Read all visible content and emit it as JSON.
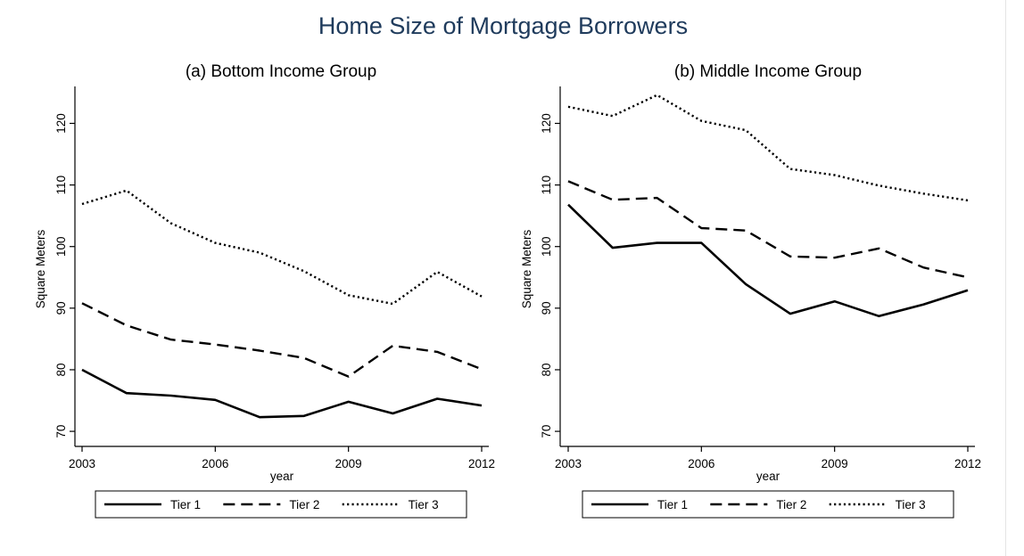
{
  "title": "Home Size of Mortgage Borrowers",
  "chart_data": [
    {
      "type": "line",
      "title": "(a) Bottom Income Group",
      "xlabel": "year",
      "ylabel": "Square Meters",
      "x": [
        2003,
        2004,
        2005,
        2006,
        2007,
        2008,
        2009,
        2010,
        2011,
        2012
      ],
      "xticks": [
        "2003",
        "2006",
        "2009",
        "2012"
      ],
      "yticks": [
        "70",
        "80",
        "90",
        "100",
        "110",
        "120"
      ],
      "xlim": [
        2003,
        2012
      ],
      "ylim": [
        69,
        126
      ],
      "grid": false,
      "legend": "bottom",
      "series": [
        {
          "name": "Tier 1",
          "style": "solid",
          "values": [
            80,
            76.2,
            75.8,
            75.1,
            72.3,
            72.5,
            74.8,
            72.9,
            75.3,
            74.2
          ]
        },
        {
          "name": "Tier 2",
          "style": "dashed",
          "values": [
            90.8,
            87.2,
            84.9,
            84.1,
            83.1,
            81.9,
            78.9,
            83.9,
            82.9,
            80.1
          ]
        },
        {
          "name": "Tier 3",
          "style": "dotted",
          "values": [
            106.9,
            109.1,
            103.8,
            100.6,
            99,
            96,
            92.1,
            90.7,
            95.9,
            91.9
          ]
        }
      ]
    },
    {
      "type": "line",
      "title": "(b) Middle Income Group",
      "xlabel": "year",
      "ylabel": "Square Meters",
      "x": [
        2003,
        2004,
        2005,
        2006,
        2007,
        2008,
        2009,
        2010,
        2011,
        2012
      ],
      "xticks": [
        "2003",
        "2006",
        "2009",
        "2012"
      ],
      "yticks": [
        "70",
        "80",
        "90",
        "100",
        "110",
        "120"
      ],
      "xlim": [
        2003,
        2012
      ],
      "ylim": [
        69,
        126
      ],
      "grid": false,
      "legend": "bottom",
      "series": [
        {
          "name": "Tier 1",
          "style": "solid",
          "values": [
            106.8,
            99.8,
            100.6,
            100.6,
            93.9,
            89.1,
            91.1,
            88.7,
            90.6,
            92.9
          ]
        },
        {
          "name": "Tier 2",
          "style": "dashed",
          "values": [
            110.6,
            107.6,
            107.9,
            103,
            102.6,
            98.4,
            98.2,
            99.7,
            96.6,
            95
          ]
        },
        {
          "name": "Tier 3",
          "style": "dotted",
          "values": [
            122.7,
            121.2,
            124.6,
            120.4,
            118.9,
            112.6,
            111.6,
            109.9,
            108.6,
            107.5
          ]
        }
      ]
    }
  ]
}
